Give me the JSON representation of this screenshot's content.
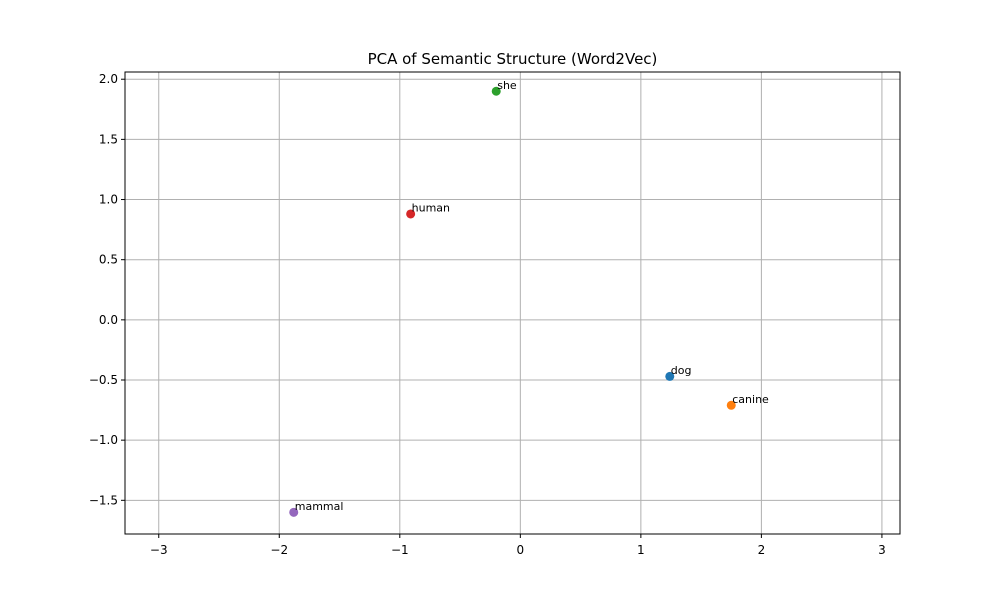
{
  "chart_data": {
    "type": "scatter",
    "title": "PCA of Semantic Structure (Word2Vec)",
    "xlabel": "",
    "ylabel": "",
    "xlim": [
      -3.28,
      3.15
    ],
    "ylim": [
      -1.78,
      2.06
    ],
    "xticks": [
      -3,
      -2,
      -1,
      0,
      1,
      2,
      3
    ],
    "yticks": [
      -1.5,
      -1.0,
      -0.5,
      0.0,
      0.5,
      1.0,
      1.5,
      2.0
    ],
    "xtick_labels": [
      "−3",
      "−2",
      "−1",
      "0",
      "1",
      "2",
      "3"
    ],
    "ytick_labels": [
      "−1.5",
      "−1.0",
      "−0.5",
      "0.0",
      "0.5",
      "1.0",
      "1.5",
      "2.0"
    ],
    "grid": true,
    "points": [
      {
        "label": "dog",
        "x": 1.24,
        "y": -0.47,
        "color": "#1f77b4"
      },
      {
        "label": "canine",
        "x": 1.75,
        "y": -0.71,
        "color": "#ff7f0e"
      },
      {
        "label": "she",
        "x": -0.2,
        "y": 1.9,
        "color": "#2ca02c"
      },
      {
        "label": "human",
        "x": -0.91,
        "y": 0.88,
        "color": "#d62728"
      },
      {
        "label": "mammal",
        "x": -1.88,
        "y": -1.6,
        "color": "#9467bd"
      }
    ]
  }
}
